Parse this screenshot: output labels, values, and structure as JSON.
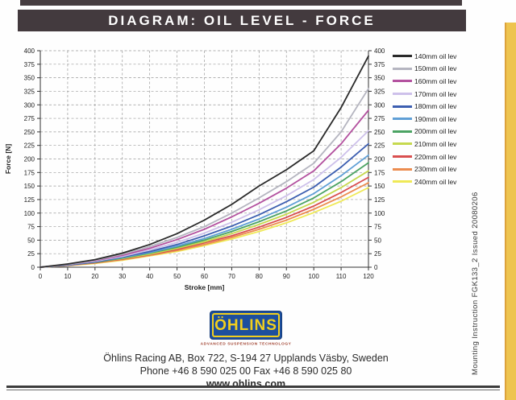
{
  "page": {
    "title": "DIAGRAM: OIL LEVEL - FORCE",
    "side_note": "Mounting Instruction FGK133_2  Issued 20080206",
    "footer": {
      "logo_text": "ÖHLINS",
      "logo_tagline": "ADVANCED SUSPENSION TECHNOLOGY",
      "address": "Öhlins Racing AB, Box 722, S-194 27 Upplands Väsby, Sweden",
      "phone_fax": "Phone +46 8 590 025 00  Fax +46 8 590 025 80",
      "website": "www.ohlins.com"
    },
    "colors": {
      "title_bar": "#433a3e",
      "logo_blue": "#1d4f9e",
      "logo_yellow": "#f2cf1d",
      "tagline_red": "#a0402e",
      "edge_band_yellow": "#eec44f"
    }
  },
  "chart_data": {
    "type": "line",
    "title": "",
    "xlabel": "Stroke [mm]",
    "ylabel": "Force [N]",
    "xlim": [
      0,
      120
    ],
    "ylim": [
      0,
      400
    ],
    "x_ticks": [
      0,
      10,
      20,
      30,
      40,
      50,
      60,
      70,
      80,
      90,
      100,
      110,
      120
    ],
    "y_ticks": [
      0,
      25,
      50,
      75,
      100,
      125,
      150,
      175,
      200,
      225,
      250,
      275,
      300,
      325,
      350,
      375,
      400
    ],
    "grid": "dashed, horizontal and vertical",
    "secondary_y_axis": "mirror of left axis, 0-400",
    "legend_position": "right",
    "x": [
      0,
      10,
      20,
      30,
      40,
      50,
      60,
      70,
      80,
      90,
      100,
      110,
      120
    ],
    "series": [
      {
        "name": "140mm oil lev",
        "color": "#2a2a2a",
        "values": [
          0,
          6,
          14,
          26,
          42,
          62,
          87,
          116,
          150,
          180,
          215,
          295,
          390
        ]
      },
      {
        "name": "150mm oil lev",
        "color": "#b5b5c0",
        "values": [
          0,
          5,
          13,
          24,
          38,
          55,
          75,
          100,
          128,
          158,
          192,
          250,
          330
        ]
      },
      {
        "name": "160mm oil lev",
        "color": "#b3519f",
        "values": [
          0,
          5,
          12,
          22,
          35,
          51,
          70,
          93,
          118,
          146,
          178,
          228,
          290
        ]
      },
      {
        "name": "170mm oil lev",
        "color": "#cdc0ea",
        "values": [
          0,
          5,
          11,
          20,
          32,
          46,
          63,
          83,
          106,
          132,
          162,
          203,
          252
        ]
      },
      {
        "name": "180mm oil lev",
        "color": "#3c5eb0",
        "values": [
          0,
          4,
          10,
          19,
          29,
          42,
          58,
          76,
          97,
          121,
          148,
          185,
          228
        ]
      },
      {
        "name": "190mm oil lev",
        "color": "#5f9fd6",
        "values": [
          0,
          4,
          10,
          18,
          27,
          39,
          53,
          70,
          89,
          111,
          136,
          169,
          207
        ]
      },
      {
        "name": "200mm oil lev",
        "color": "#4ba363",
        "values": [
          0,
          4,
          9,
          17,
          26,
          37,
          50,
          66,
          84,
          104,
          128,
          158,
          193
        ]
      },
      {
        "name": "210mm oil lev",
        "color": "#c6d94f",
        "values": [
          0,
          4,
          9,
          16,
          24,
          35,
          47,
          62,
          79,
          98,
          120,
          147,
          178
        ]
      },
      {
        "name": "220mm oil lev",
        "color": "#d94f4f",
        "values": [
          0,
          4,
          8,
          15,
          23,
          33,
          45,
          58,
          74,
          92,
          113,
          138,
          166
        ]
      },
      {
        "name": "230mm oil lev",
        "color": "#ec8c4f",
        "values": [
          0,
          3,
          8,
          14,
          22,
          31,
          42,
          55,
          70,
          87,
          107,
          130,
          156
        ]
      },
      {
        "name": "240mm oil lev",
        "color": "#efe957",
        "values": [
          0,
          3,
          7,
          13,
          21,
          29,
          40,
          52,
          66,
          82,
          101,
          122,
          147
        ]
      }
    ]
  }
}
